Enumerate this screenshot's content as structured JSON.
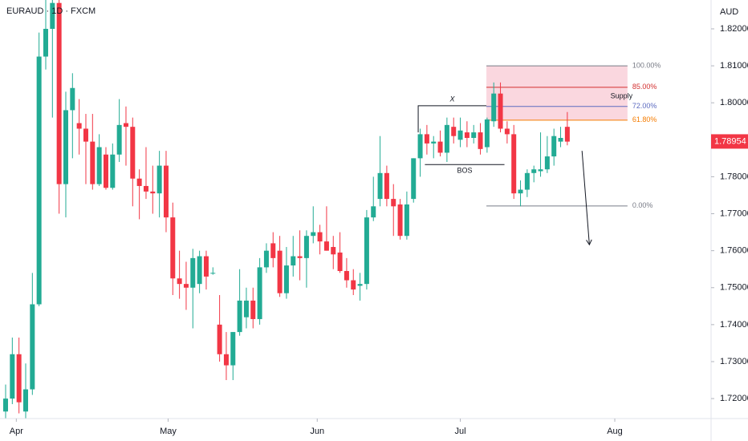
{
  "chart_data": {
    "type": "candlestick",
    "title": "EURAUD · 1D · FXCM",
    "y_unit": "AUD",
    "up_color": "#22ab94",
    "down_color": "#f23645",
    "x": [
      0,
      1,
      2,
      3,
      4,
      5,
      6,
      7,
      8,
      9,
      10,
      11,
      12,
      13,
      14,
      15,
      16,
      17,
      18,
      19,
      20,
      21,
      22,
      23,
      24,
      25,
      26,
      27,
      28,
      29,
      30,
      31,
      32,
      33,
      34,
      35,
      36,
      37,
      38,
      39,
      40,
      41,
      42,
      43,
      44,
      45,
      46,
      47,
      48,
      49,
      50,
      51,
      52,
      53,
      54,
      55,
      56,
      57,
      58,
      59,
      60,
      61,
      62,
      63,
      64,
      65,
      66,
      67,
      68,
      69,
      70,
      71,
      72,
      73,
      74,
      75,
      76,
      77,
      78,
      79,
      80,
      81,
      82,
      83,
      84
    ],
    "open": [
      1.7165,
      1.72,
      1.732,
      1.7165,
      1.7225,
      1.7455,
      1.8125,
      1.82,
      1.827,
      1.778,
      1.798,
      1.7945,
      1.793,
      1.7895,
      1.778,
      1.786,
      1.777,
      1.786,
      1.7945,
      1.7935,
      1.7795,
      1.7775,
      1.776,
      1.7755,
      1.783,
      1.769,
      1.7525,
      1.751,
      1.75,
      1.751,
      1.7585,
      1.754,
      1.74,
      1.732,
      1.729,
      1.738,
      1.742,
      1.7465,
      1.7415,
      1.7555,
      1.762,
      1.76,
      1.7485,
      1.756,
      1.7585,
      1.758,
      1.764,
      1.765,
      1.7625,
      1.761,
      1.7595,
      1.7545,
      1.752,
      1.7505,
      1.751,
      1.769,
      1.774,
      1.781,
      1.774,
      1.7725,
      1.764,
      1.774,
      1.785,
      1.7915,
      1.789,
      1.7895,
      1.7865,
      1.7935,
      1.79,
      1.792,
      1.7905,
      1.792,
      1.788,
      1.795,
      1.8025,
      1.793,
      1.7915,
      1.7755,
      1.7765,
      1.781,
      1.7815,
      1.782,
      1.7855,
      1.7895,
      1.7935
    ],
    "high": [
      1.7238,
      1.7365,
      1.7365,
      1.7295,
      1.754,
      1.819,
      1.83,
      1.83,
      1.83,
      1.803,
      1.808,
      1.801,
      1.797,
      1.797,
      1.7915,
      1.788,
      1.789,
      1.801,
      1.799,
      1.796,
      1.782,
      1.788,
      1.783,
      1.787,
      1.787,
      1.773,
      1.76,
      1.757,
      1.7605,
      1.76,
      1.76,
      1.7555,
      1.748,
      1.738,
      1.738,
      1.755,
      1.75,
      1.75,
      1.758,
      1.762,
      1.765,
      1.764,
      1.761,
      1.764,
      1.7655,
      1.7655,
      1.772,
      1.767,
      1.772,
      1.764,
      1.765,
      1.758,
      1.755,
      1.754,
      1.771,
      1.78,
      1.791,
      1.783,
      1.778,
      1.774,
      1.776,
      1.785,
      1.793,
      1.794,
      1.791,
      1.7925,
      1.796,
      1.796,
      1.796,
      1.795,
      1.794,
      1.7945,
      1.796,
      1.8055,
      1.8055,
      1.795,
      1.794,
      1.779,
      1.782,
      1.783,
      1.792,
      1.791,
      1.793,
      1.7935,
      1.7975
    ],
    "low": [
      1.714,
      1.7185,
      1.716,
      1.7145,
      1.721,
      1.745,
      1.809,
      1.796,
      1.77,
      1.769,
      1.785,
      1.786,
      1.778,
      1.7765,
      1.7775,
      1.7765,
      1.7765,
      1.784,
      1.783,
      1.772,
      1.7685,
      1.774,
      1.77,
      1.769,
      1.765,
      1.748,
      1.747,
      1.744,
      1.739,
      1.7485,
      1.7495,
      1.7535,
      1.73,
      1.725,
      1.725,
      1.737,
      1.739,
      1.739,
      1.74,
      1.754,
      1.7555,
      1.7475,
      1.747,
      1.753,
      1.752,
      1.75,
      1.762,
      1.759,
      1.76,
      1.755,
      1.754,
      1.75,
      1.748,
      1.7465,
      1.7495,
      1.768,
      1.772,
      1.772,
      1.764,
      1.763,
      1.763,
      1.773,
      1.78,
      1.786,
      1.785,
      1.7855,
      1.784,
      1.789,
      1.788,
      1.788,
      1.789,
      1.786,
      1.7865,
      1.7935,
      1.792,
      1.789,
      1.774,
      1.772,
      1.7745,
      1.7785,
      1.78,
      1.781,
      1.783,
      1.788,
      1.7885
    ],
    "close": [
      1.72,
      1.732,
      1.719,
      1.7225,
      1.7455,
      1.8125,
      1.82,
      1.827,
      1.778,
      1.798,
      1.804,
      1.793,
      1.7895,
      1.778,
      1.788,
      1.777,
      1.786,
      1.794,
      1.7935,
      1.7795,
      1.7775,
      1.776,
      1.7755,
      1.783,
      1.769,
      1.7525,
      1.751,
      1.75,
      1.758,
      1.7585,
      1.753,
      1.754,
      1.732,
      1.729,
      1.738,
      1.7465,
      1.7465,
      1.7415,
      1.7555,
      1.76,
      1.758,
      1.7485,
      1.756,
      1.7585,
      1.758,
      1.764,
      1.765,
      1.7625,
      1.76,
      1.759,
      1.7545,
      1.752,
      1.7495,
      1.751,
      1.769,
      1.772,
      1.781,
      1.774,
      1.772,
      1.764,
      1.7725,
      1.785,
      1.7915,
      1.789,
      1.7895,
      1.7865,
      1.794,
      1.791,
      1.7925,
      1.7905,
      1.792,
      1.7875,
      1.7955,
      1.8025,
      1.793,
      1.7915,
      1.7755,
      1.7765,
      1.781,
      1.782,
      1.782,
      1.7855,
      1.791,
      1.7905,
      1.7895
    ],
    "xlim": [
      -0.84,
      105.5
    ],
    "xticks": [
      {
        "value": 1.6,
        "label": "Apr"
      },
      {
        "value": 24.3,
        "label": "May"
      },
      {
        "value": 46.6,
        "label": "Jun"
      },
      {
        "value": 68,
        "label": "Jul"
      },
      {
        "value": 91.1,
        "label": "Aug"
      }
    ],
    "ylim": [
      1.7146,
      1.8278
    ],
    "yticks": [
      {
        "value": 1.72,
        "label": "1.72000"
      },
      {
        "value": 1.73,
        "label": "1.73000"
      },
      {
        "value": 1.74,
        "label": "1.74000"
      },
      {
        "value": 1.75,
        "label": "1.75000"
      },
      {
        "value": 1.76,
        "label": "1.76000"
      },
      {
        "value": 1.77,
        "label": "1.77000"
      },
      {
        "value": 1.78,
        "label": "1.78000"
      },
      {
        "value": 1.79,
        "label": "1.79000"
      },
      {
        "value": 1.8,
        "label": "1.80000"
      },
      {
        "value": 1.81,
        "label": "1.81000"
      },
      {
        "value": 1.82,
        "label": "1.82000"
      }
    ],
    "last_price": {
      "value": 1.78954,
      "label": "1.78954"
    },
    "fibonacci": {
      "x": [
        71.9,
        93
      ],
      "zone_color": "#f8c9d4",
      "levels": [
        {
          "label": "100.00%",
          "value": 1.81,
          "color": "#787b86"
        },
        {
          "label": "85.00%",
          "value": 1.8042,
          "color": "#d32f2f"
        },
        {
          "label": "72.00%",
          "value": 1.799,
          "color": "#5c6bc0"
        },
        {
          "label": "61.80%",
          "value": 1.7953,
          "color": "#f57c00"
        },
        {
          "label": "0.00%",
          "value": 1.7721,
          "color": "#787b86"
        }
      ]
    },
    "annotations": [
      {
        "text": "X",
        "x": [
          61.7,
          71.9
        ],
        "y": 1.7992
      },
      {
        "text": "BOS",
        "x": [
          62.7,
          74.6
        ],
        "y": 1.7833
      },
      {
        "text": "Supply",
        "x": 92.1,
        "y": 1.8017
      }
    ],
    "arrow": {
      "x": [
        86.2,
        87.3
      ],
      "y": [
        1.787,
        1.7616
      ]
    }
  }
}
